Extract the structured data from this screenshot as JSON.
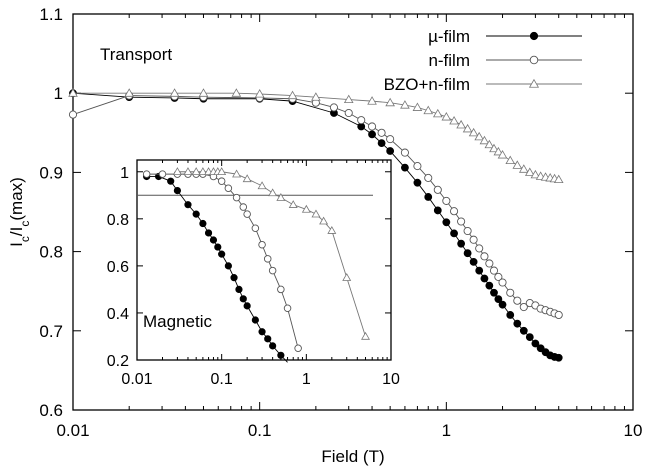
{
  "chart_data": [
    {
      "type": "scatter",
      "role": "main",
      "xlabel": "Field (T)",
      "ylabel": "I_c/I_c(max)",
      "xscale": "log",
      "xlim": [
        0.01,
        10
      ],
      "ylim": [
        0.6,
        1.1
      ],
      "xticks": [
        0.01,
        0.1,
        1,
        10
      ],
      "xtick_labels": [
        "0.01",
        "0.1",
        "1",
        "10"
      ],
      "yticks": [
        0.6,
        0.7,
        0.8,
        0.9,
        1.0,
        1.1
      ],
      "ytick_labels": [
        "0.6",
        "0.7",
        "0.8",
        "0.9",
        "1",
        "1.1"
      ],
      "annotation": "Transport",
      "legend_position": "top-right",
      "grid": false,
      "series": [
        {
          "name": "µ-film",
          "marker": "filled-circle",
          "color": "#000000",
          "x": [
            0.01,
            0.02,
            0.035,
            0.05,
            0.1,
            0.15,
            0.25,
            0.35,
            0.4,
            0.45,
            0.5,
            0.6,
            0.7,
            0.8,
            0.9,
            1.0,
            1.1,
            1.2,
            1.3,
            1.4,
            1.5,
            1.6,
            1.7,
            1.8,
            1.9,
            2.0,
            2.2,
            2.4,
            2.6,
            2.8,
            3.0,
            3.2,
            3.4,
            3.6,
            3.8,
            4.0
          ],
          "y": [
            1.0,
            0.995,
            0.994,
            0.993,
            0.993,
            0.99,
            0.975,
            0.958,
            0.948,
            0.937,
            0.927,
            0.906,
            0.887,
            0.869,
            0.852,
            0.837,
            0.823,
            0.81,
            0.798,
            0.787,
            0.776,
            0.766,
            0.757,
            0.748,
            0.74,
            0.733,
            0.72,
            0.709,
            0.7,
            0.692,
            0.684,
            0.678,
            0.673,
            0.669,
            0.667,
            0.666
          ]
        },
        {
          "name": "n-film",
          "marker": "open-circle",
          "color": "#555555",
          "x": [
            0.01,
            0.02,
            0.035,
            0.05,
            0.1,
            0.15,
            0.2,
            0.25,
            0.3,
            0.35,
            0.4,
            0.45,
            0.5,
            0.6,
            0.7,
            0.8,
            0.9,
            1.0,
            1.1,
            1.2,
            1.3,
            1.4,
            1.5,
            1.6,
            1.7,
            1.8,
            1.9,
            2.0,
            2.2,
            2.4,
            2.6,
            2.8,
            3.0,
            3.2,
            3.4,
            3.6,
            3.8,
            4.0
          ],
          "y": [
            0.973,
            0.997,
            0.996,
            0.995,
            0.994,
            0.993,
            0.988,
            0.982,
            0.975,
            0.966,
            0.958,
            0.95,
            0.942,
            0.925,
            0.908,
            0.893,
            0.878,
            0.864,
            0.851,
            0.838,
            0.826,
            0.815,
            0.804,
            0.794,
            0.785,
            0.776,
            0.768,
            0.761,
            0.748,
            0.738,
            0.73,
            0.735,
            0.732,
            0.728,
            0.726,
            0.724,
            0.722,
            0.72
          ]
        },
        {
          "name": "BZO+n-film",
          "marker": "open-triangle",
          "color": "#777777",
          "x": [
            0.01,
            0.02,
            0.035,
            0.05,
            0.075,
            0.1,
            0.15,
            0.2,
            0.3,
            0.4,
            0.5,
            0.6,
            0.7,
            0.8,
            0.9,
            1.0,
            1.1,
            1.2,
            1.3,
            1.4,
            1.5,
            1.6,
            1.7,
            1.8,
            1.9,
            2.0,
            2.2,
            2.4,
            2.6,
            2.8,
            3.0,
            3.2,
            3.4,
            3.6,
            3.8,
            4.0
          ],
          "y": [
            1.0,
            1.0,
            1.0,
            1.0,
            1.0,
            0.999,
            0.997,
            0.995,
            0.992,
            0.99,
            0.988,
            0.985,
            0.982,
            0.978,
            0.974,
            0.97,
            0.965,
            0.96,
            0.955,
            0.95,
            0.945,
            0.94,
            0.935,
            0.93,
            0.926,
            0.922,
            0.915,
            0.909,
            0.904,
            0.9,
            0.897,
            0.895,
            0.894,
            0.893,
            0.892,
            0.891
          ]
        }
      ]
    },
    {
      "type": "scatter",
      "role": "inset",
      "xscale": "log",
      "xlim": [
        0.01,
        10
      ],
      "ylim": [
        0.2,
        1.05
      ],
      "xticks": [
        0.01,
        0.1,
        1,
        10
      ],
      "xtick_labels": [
        "0.01",
        "0.1",
        "1",
        "10"
      ],
      "yticks": [
        0.2,
        0.4,
        0.6,
        0.8,
        1.0
      ],
      "ytick_labels": [
        "0.2",
        "0.4",
        "0.6",
        "0.8",
        "1"
      ],
      "annotation": "Magnetic",
      "hline": 0.9,
      "series": [
        {
          "name": "µ-film",
          "marker": "filled-circle",
          "color": "#000000",
          "x": [
            0.013,
            0.018,
            0.025,
            0.03,
            0.04,
            0.05,
            0.06,
            0.07,
            0.08,
            0.09,
            0.1,
            0.12,
            0.14,
            0.16,
            0.18,
            0.2,
            0.25,
            0.3,
            0.35,
            0.4,
            0.5,
            0.6
          ],
          "y": [
            0.98,
            0.98,
            0.96,
            0.92,
            0.86,
            0.82,
            0.78,
            0.74,
            0.71,
            0.68,
            0.65,
            0.6,
            0.55,
            0.5,
            0.46,
            0.43,
            0.37,
            0.32,
            0.29,
            0.26,
            0.22,
            0.19
          ]
        },
        {
          "name": "n-film",
          "marker": "open-circle",
          "color": "#555555",
          "x": [
            0.013,
            0.02,
            0.03,
            0.04,
            0.05,
            0.06,
            0.08,
            0.1,
            0.12,
            0.15,
            0.18,
            0.2,
            0.25,
            0.3,
            0.35,
            0.4,
            0.5,
            0.6,
            0.8
          ],
          "y": [
            0.99,
            0.99,
            0.99,
            0.99,
            0.99,
            0.99,
            0.98,
            0.96,
            0.93,
            0.89,
            0.85,
            0.82,
            0.76,
            0.69,
            0.63,
            0.58,
            0.5,
            0.42,
            0.25
          ]
        },
        {
          "name": "BZO+n-film",
          "marker": "open-triangle",
          "color": "#777777",
          "x": [
            0.03,
            0.04,
            0.05,
            0.06,
            0.07,
            0.08,
            0.09,
            0.1,
            0.15,
            0.2,
            0.3,
            0.4,
            0.5,
            0.7,
            1.0,
            1.3,
            1.6,
            2.0,
            3.0,
            5.0
          ],
          "y": [
            1.0,
            1.0,
            1.0,
            1.0,
            1.0,
            1.0,
            1.0,
            1.0,
            0.99,
            0.97,
            0.94,
            0.91,
            0.89,
            0.86,
            0.84,
            0.82,
            0.79,
            0.75,
            0.55,
            0.3
          ]
        }
      ]
    }
  ]
}
